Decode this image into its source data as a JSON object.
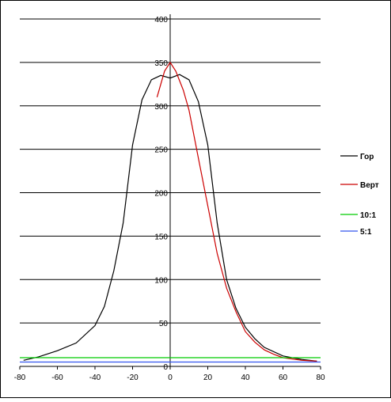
{
  "chart_data": {
    "type": "line",
    "title": "",
    "xlabel": "",
    "ylabel": "",
    "xlim": [
      -80,
      80
    ],
    "ylim": [
      0,
      400
    ],
    "x_ticks": [
      -80,
      -60,
      -40,
      -20,
      0,
      20,
      40,
      60,
      80
    ],
    "y_ticks": [
      0,
      50,
      100,
      150,
      200,
      250,
      300,
      350,
      400
    ],
    "grid": "horizontal",
    "legend_position": "right",
    "series": [
      {
        "name": "Гор",
        "color": "#000000",
        "x": [
          -78,
          -70,
          -60,
          -50,
          -40,
          -35,
          -30,
          -25,
          -20,
          -15,
          -10,
          -5,
          0,
          5,
          10,
          15,
          20,
          25,
          30,
          35,
          40,
          45,
          50,
          60,
          70,
          78
        ],
        "y": [
          7,
          11,
          18,
          27,
          47,
          69,
          110,
          165,
          255,
          307,
          330,
          335,
          332,
          336,
          330,
          305,
          255,
          165,
          100,
          67,
          45,
          32,
          22,
          12,
          8,
          6
        ]
      },
      {
        "name": "Верт",
        "color": "#cc0000",
        "x": [
          -7,
          -3,
          0,
          3,
          7,
          10,
          15,
          20,
          25,
          30,
          35,
          40,
          45,
          50,
          55,
          60,
          70,
          78
        ],
        "y": [
          310,
          340,
          350,
          340,
          318,
          295,
          240,
          185,
          130,
          90,
          63,
          40,
          28,
          19,
          14,
          10,
          7,
          6
        ]
      },
      {
        "name": "10:1",
        "color": "#00cc00",
        "x": [
          -80,
          80
        ],
        "y": [
          10,
          10
        ]
      },
      {
        "name": "5:1",
        "color": "#3355ee",
        "x": [
          -80,
          80
        ],
        "y": [
          5,
          5
        ]
      }
    ]
  }
}
